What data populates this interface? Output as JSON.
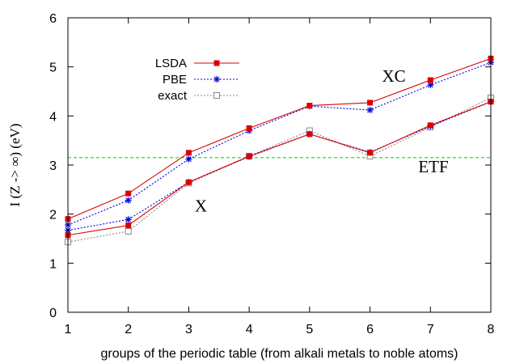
{
  "chart_data": {
    "type": "line",
    "title": "",
    "xlabel": "groups of the periodic table (from alkali metals to noble atoms)",
    "ylabel": "I (Z -> ∞) (eV)",
    "xlim": [
      1,
      8
    ],
    "ylim": [
      0,
      6
    ],
    "x_ticks": [
      1,
      2,
      3,
      4,
      5,
      6,
      7,
      8
    ],
    "y_ticks": [
      0,
      1,
      2,
      3,
      4,
      5,
      6
    ],
    "grid": false,
    "legend_position": "top-left",
    "reference_line": {
      "y": 3.15,
      "color": "#00cc00",
      "label": "ETF"
    },
    "annotations": [
      {
        "text": "XC",
        "x": 6.2,
        "y": 4.7
      },
      {
        "text": "X",
        "x": 3.1,
        "y": 2.05
      },
      {
        "text": "ETF",
        "x": 6.8,
        "y": 2.85
      }
    ],
    "series": [
      {
        "name": "LSDA",
        "color": "#dd0000",
        "marker": "filled-square",
        "dash": "solid",
        "groups": {
          "XC": {
            "x": [
              1,
              2,
              3,
              4,
              5,
              6,
              7,
              8
            ],
            "y": [
              1.9,
              2.42,
              3.25,
              3.75,
              4.21,
              4.27,
              4.73,
              5.17
            ]
          },
          "X": {
            "x": [
              1,
              2,
              3,
              4,
              5,
              6,
              7,
              8
            ],
            "y": [
              1.57,
              1.77,
              2.65,
              3.18,
              3.63,
              3.25,
              3.81,
              4.29
            ]
          }
        }
      },
      {
        "name": "PBE",
        "color": "#0000dd",
        "marker": "asterisk",
        "dash": "dotted",
        "groups": {
          "XC": {
            "x": [
              1,
              2,
              3,
              4,
              5,
              6,
              7,
              8
            ],
            "y": [
              1.78,
              2.28,
              3.12,
              3.7,
              4.2,
              4.12,
              4.63,
              5.09
            ]
          },
          "X": {
            "x": [
              1,
              2,
              3,
              4,
              5,
              6,
              7,
              8
            ],
            "y": [
              1.67,
              1.89,
              2.65,
              3.17,
              3.63,
              3.26,
              3.79,
              4.29
            ]
          }
        }
      },
      {
        "name": "exact",
        "color": "#888888",
        "marker": "open-square",
        "dash": "dotted",
        "groups": {
          "X": {
            "x": [
              1,
              2,
              3,
              4,
              5,
              6,
              7,
              8
            ],
            "y": [
              1.43,
              1.65,
              2.63,
              3.18,
              3.7,
              3.18,
              3.77,
              4.37
            ]
          }
        }
      }
    ]
  }
}
